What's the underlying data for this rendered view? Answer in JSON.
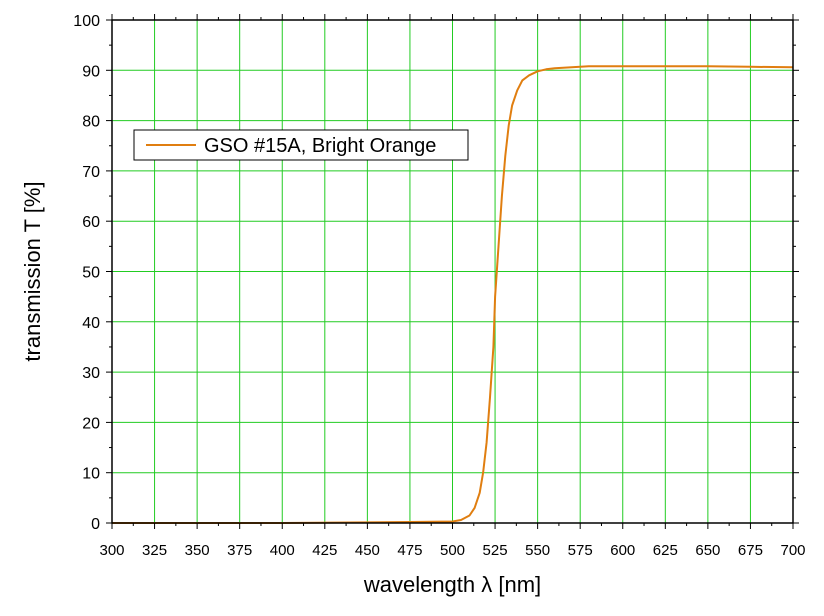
{
  "chart_data": {
    "type": "line",
    "title": "",
    "xlabel": "wavelength λ [nm]",
    "ylabel": "transmission T [%]",
    "xlim": [
      300,
      700
    ],
    "ylim": [
      0,
      100
    ],
    "x_ticks": [
      300,
      325,
      350,
      375,
      400,
      425,
      450,
      475,
      500,
      525,
      550,
      575,
      600,
      625,
      650,
      675,
      700
    ],
    "y_ticks": [
      0,
      10,
      20,
      30,
      40,
      50,
      60,
      70,
      80,
      90,
      100
    ],
    "grid": true,
    "legend_position": "upper-left",
    "colors": {
      "grid": "#22cc22",
      "series": "#e07e10",
      "axes": "#000000"
    },
    "series": [
      {
        "name": "GSO #15A, Bright Orange",
        "x": [
          300,
          400,
          475,
          500,
          505,
          510,
          513,
          516,
          518,
          520,
          522,
          524,
          525,
          527,
          529,
          531,
          533,
          535,
          538,
          541,
          545,
          550,
          555,
          560,
          570,
          580,
          600,
          625,
          650,
          675,
          700
        ],
        "y": [
          0,
          0,
          0.2,
          0.3,
          0.6,
          1.5,
          3,
          6,
          10,
          16,
          25,
          35,
          45,
          55,
          65,
          73,
          79,
          83,
          86,
          88,
          89,
          89.8,
          90.2,
          90.4,
          90.6,
          90.8,
          90.8,
          90.8,
          90.8,
          90.7,
          90.6
        ]
      }
    ]
  }
}
